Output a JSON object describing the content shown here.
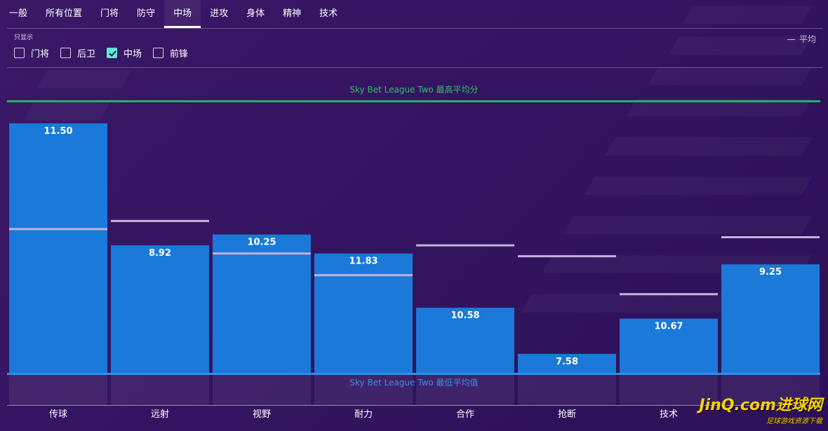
{
  "tabs": [
    "一般",
    "所有位置",
    "门将",
    "防守",
    "中场",
    "进攻",
    "身体",
    "精神",
    "技术"
  ],
  "active_tab": "中场",
  "filter": {
    "title": "只显示",
    "options": [
      {
        "label": "门将",
        "checked": false
      },
      {
        "label": "后卫",
        "checked": false
      },
      {
        "label": "中场",
        "checked": true
      },
      {
        "label": "前锋",
        "checked": false
      }
    ]
  },
  "legend": {
    "average_label": "平均"
  },
  "labels": {
    "top": "Sky Bet League Two 最高平均分",
    "bottom": "Sky Bet League Two 最低平均值"
  },
  "watermark": {
    "main": "JinQ.com进球网",
    "sub": "足球游戏资源下载"
  },
  "colors": {
    "bar": "#1a79d9",
    "average": "#c4b2de",
    "top_line": "#1fb65a"
  },
  "chart_data": {
    "type": "bar",
    "categories": [
      "传球",
      "远射",
      "视野",
      "耐力",
      "合作",
      "抢断",
      "技术",
      ""
    ],
    "values": [
      11.5,
      8.92,
      10.25,
      11.83,
      10.58,
      7.58,
      10.67,
      9.25
    ],
    "bar_levels": [
      0.92,
      0.47,
      0.51,
      0.44,
      0.24,
      0.07,
      0.2,
      0.4
    ],
    "average_levels": [
      0.53,
      0.56,
      0.44,
      0.36,
      0.47,
      0.43,
      0.29,
      0.5
    ],
    "range_labels": {
      "max": "Sky Bet League Two 最高平均分",
      "min": "Sky Bet League Two 最低平均值"
    },
    "series": [
      {
        "name": "平均",
        "values_from": "average_levels"
      }
    ]
  }
}
